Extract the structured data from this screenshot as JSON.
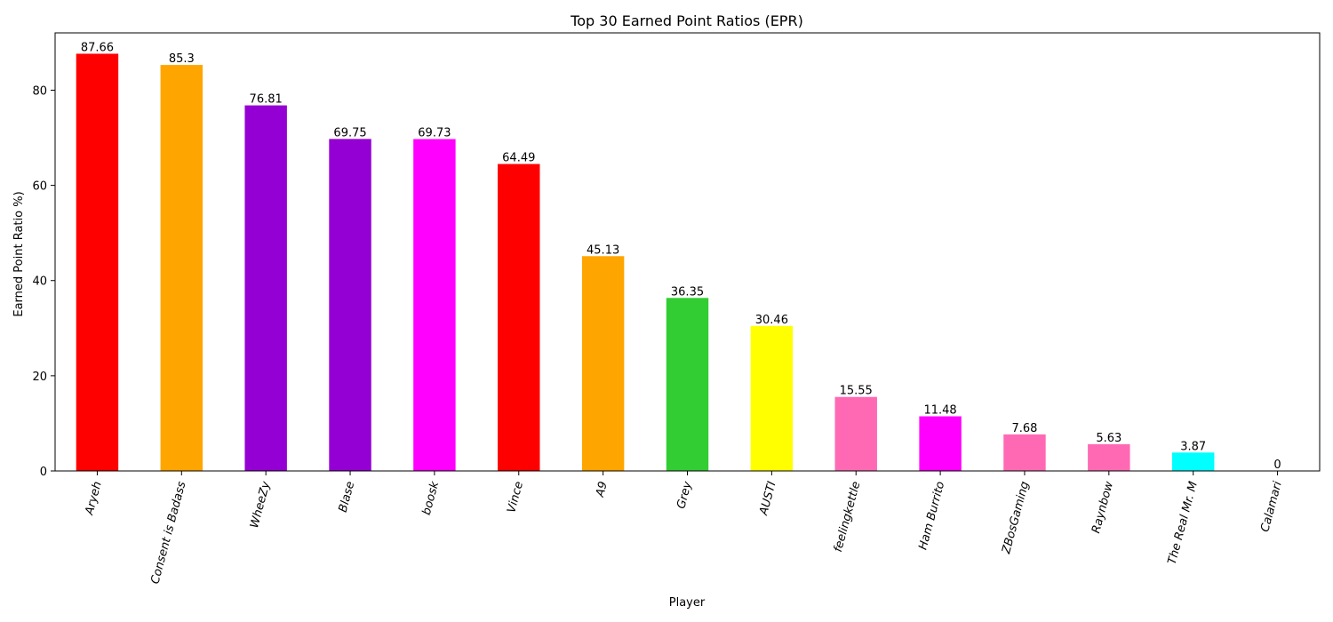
{
  "chart_data": {
    "type": "bar",
    "title": "Top 30 Earned Point Ratios (EPR)",
    "xlabel": "Player",
    "ylabel": "Earned Point Ratio %)",
    "categories": [
      "Aryeh",
      "Consent is Badass",
      "WheeZy",
      "Blase",
      "boosk",
      "Vince",
      "A9",
      "Grey",
      "AUSTI",
      "feelingkettle",
      "Ham Burrito",
      "ZBosGaming",
      "Raynbow",
      "The Real Mr. M",
      "Calamari"
    ],
    "values": [
      87.66,
      85.3,
      76.81,
      69.75,
      69.73,
      64.49,
      45.13,
      36.35,
      30.46,
      15.55,
      11.48,
      7.68,
      5.63,
      3.87,
      0
    ],
    "data_labels": [
      "87.66",
      "85.3",
      "76.81",
      "69.75",
      "69.73",
      "64.49",
      "45.13",
      "36.35",
      "30.46",
      "15.55",
      "11.48",
      "7.68",
      "5.63",
      "3.87",
      "0"
    ],
    "colors": [
      "#ff0000",
      "#ffa500",
      "#9400d3",
      "#9400d3",
      "#ff00ff",
      "#ff0000",
      "#ffa500",
      "#32cd32",
      "#ffff00",
      "#ff69b4",
      "#ff00ff",
      "#ff69b4",
      "#ff69b4",
      "#00ffff",
      "#32cd32"
    ],
    "yticks": [
      0,
      20,
      40,
      60,
      80
    ],
    "ytick_labels": [
      "0",
      "20",
      "40",
      "60",
      "80"
    ],
    "ylim": [
      0,
      92.04
    ],
    "grid": false,
    "legend": "none",
    "xtick_rotation_deg": 75
  }
}
